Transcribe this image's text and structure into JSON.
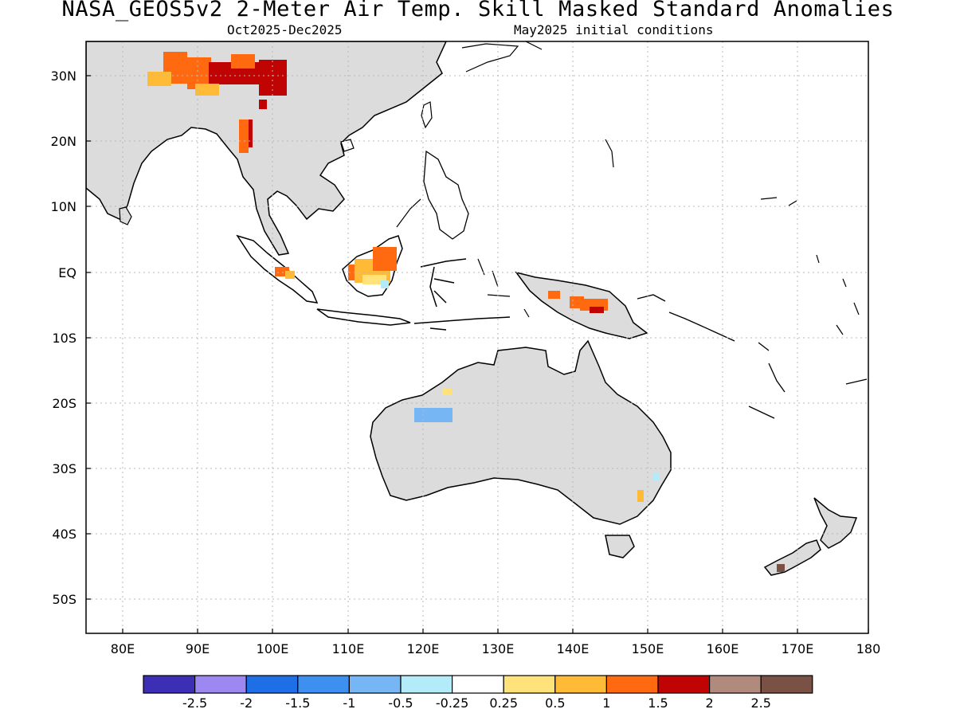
{
  "title": "NASA_GEOS5v2 2-Meter Air Temp. Skill Masked Standard Anomalies",
  "subtitle_left": "Oct2025-Dec2025",
  "subtitle_right": "May2025 initial conditions",
  "lat_labels": [
    "30N",
    "20N",
    "10N",
    "EQ",
    "10S",
    "20S",
    "30S",
    "40S",
    "50S"
  ],
  "lon_labels": [
    "80E",
    "90E",
    "100E",
    "110E",
    "120E",
    "130E",
    "140E",
    "150E",
    "160E",
    "170E",
    "180"
  ],
  "colorbar": {
    "colors": [
      "#3c2fb5",
      "#9d87f0",
      "#1e6fe6",
      "#3d90f0",
      "#76b6f5",
      "#b3ecf8",
      "#ffffff",
      "#ffe37a",
      "#ffbb35",
      "#ff6a10",
      "#c00404",
      "#b18a7e",
      "#7a5145"
    ],
    "labels": [
      "-2.5",
      "-2",
      "-1.5",
      "-1",
      "-0.5",
      "-0.25",
      "0.25",
      "0.5",
      "1",
      "1.5",
      "2",
      "2.5"
    ]
  },
  "colors": {
    "masked_land": "#dcdcdc",
    "coastline": "#000000",
    "grid": "#b8b8b8"
  }
}
